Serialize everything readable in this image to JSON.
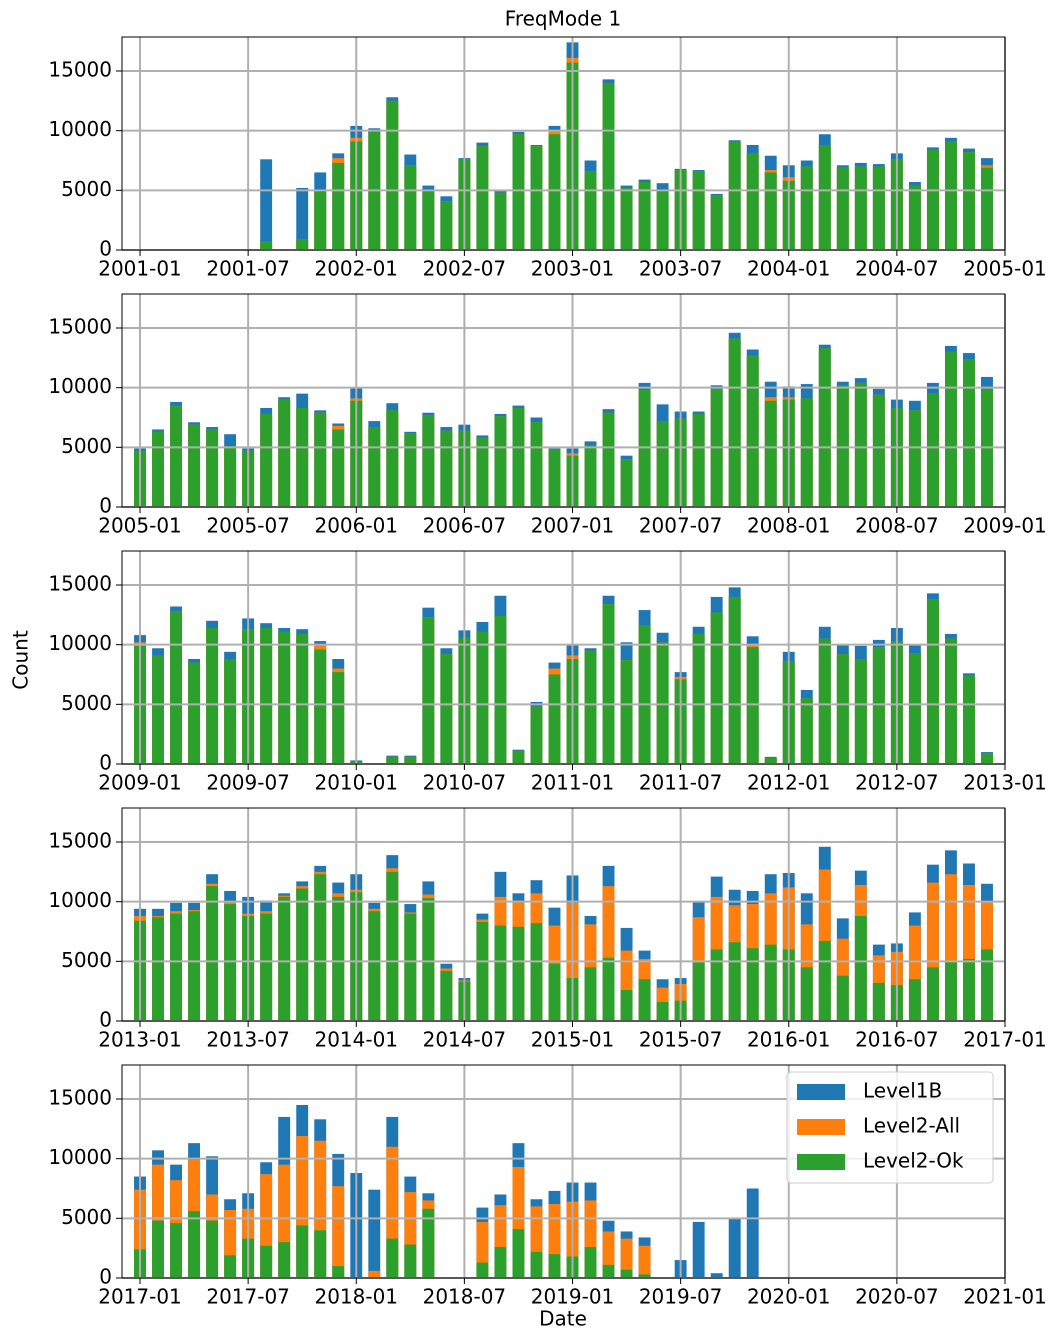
{
  "chart_data": [
    {
      "type": "bar",
      "title": "FreqMode 1",
      "x": [
        "2001-08",
        "2001-10",
        "2001-11",
        "2001-12",
        "2002-01",
        "2002-02",
        "2002-03",
        "2002-04",
        "2002-05",
        "2002-06",
        "2002-07",
        "2002-08",
        "2002-09",
        "2002-10",
        "2002-11",
        "2002-12",
        "2003-01",
        "2003-02",
        "2003-03",
        "2003-04",
        "2003-05",
        "2003-06",
        "2003-07",
        "2003-08",
        "2003-09",
        "2003-10",
        "2003-11",
        "2003-12",
        "2004-01",
        "2004-02",
        "2004-03",
        "2004-04",
        "2004-05",
        "2004-06",
        "2004-07",
        "2004-08",
        "2004-09",
        "2004-10",
        "2004-11",
        "2004-12"
      ],
      "xlim": [
        "2000-12",
        "2005-01"
      ],
      "xticks": [
        "2001-01",
        "2001-07",
        "2002-01",
        "2002-07",
        "2003-01",
        "2003-07",
        "2004-01",
        "2004-07",
        "2005-01"
      ],
      "ylim": [
        0,
        17850
      ],
      "yticks": [
        0,
        5000,
        10000,
        15000
      ],
      "grid": true,
      "series": [
        {
          "color": "#1f77b4",
          "values": [
            7600,
            5200,
            6500,
            8100,
            10400,
            10200,
            12800,
            8000,
            5400,
            4500,
            7700,
            9000,
            5000,
            9900,
            8800,
            10400,
            17400,
            7500,
            14300,
            5400,
            5900,
            5600,
            6800,
            6700,
            4700,
            9200,
            8800,
            7900,
            7100,
            7500,
            9700,
            7100,
            7300,
            7200,
            8100,
            5700,
            8600,
            9400,
            8500,
            7700
          ]
        },
        {
          "color": "#ff7f0e",
          "values": [
            700,
            900,
            5000,
            7700,
            9400,
            10000,
            12500,
            7100,
            4900,
            4100,
            7600,
            8700,
            4800,
            9700,
            8700,
            10000,
            16100,
            6600,
            14000,
            5200,
            5700,
            4900,
            6700,
            6600,
            4600,
            9100,
            8100,
            6700,
            6100,
            7000,
            8800,
            6900,
            7000,
            7000,
            7600,
            5400,
            8400,
            9100,
            8200,
            7100
          ]
        },
        {
          "color": "#2ca02c",
          "values": [
            700,
            900,
            5000,
            7300,
            9100,
            10000,
            12500,
            7100,
            4900,
            4100,
            7600,
            8700,
            4800,
            9700,
            8700,
            9700,
            15700,
            6600,
            14000,
            5200,
            5700,
            4900,
            6700,
            6600,
            4600,
            9100,
            8100,
            6500,
            5800,
            7000,
            8800,
            6900,
            7000,
            7000,
            7600,
            5400,
            8400,
            9100,
            8200,
            6900
          ]
        }
      ]
    },
    {
      "type": "bar",
      "x": [
        "2005-01",
        "2005-02",
        "2005-03",
        "2005-04",
        "2005-05",
        "2005-06",
        "2005-07",
        "2005-08",
        "2005-09",
        "2005-10",
        "2005-11",
        "2005-12",
        "2006-01",
        "2006-02",
        "2006-03",
        "2006-04",
        "2006-05",
        "2006-06",
        "2006-07",
        "2006-08",
        "2006-09",
        "2006-10",
        "2006-11",
        "2006-12",
        "2007-01",
        "2007-02",
        "2007-03",
        "2007-04",
        "2007-05",
        "2007-06",
        "2007-07",
        "2007-08",
        "2007-09",
        "2007-10",
        "2007-11",
        "2007-12",
        "2008-01",
        "2008-02",
        "2008-03",
        "2008-04",
        "2008-05",
        "2008-06",
        "2008-07",
        "2008-08",
        "2008-09",
        "2008-10",
        "2008-11",
        "2008-12"
      ],
      "xlim": [
        "2004-12",
        "2009-01"
      ],
      "xticks": [
        "2005-01",
        "2005-07",
        "2006-01",
        "2006-07",
        "2007-01",
        "2007-07",
        "2008-01",
        "2008-07",
        "2009-01"
      ],
      "ylim": [
        0,
        17850
      ],
      "yticks": [
        0,
        5000,
        10000,
        15000
      ],
      "grid": true,
      "series": [
        {
          "color": "#1f77b4",
          "values": [
            4900,
            6500,
            8800,
            7100,
            6700,
            6100,
            4900,
            8300,
            9200,
            9500,
            8100,
            7000,
            10000,
            7200,
            8700,
            6300,
            7900,
            6700,
            6900,
            6000,
            7800,
            8500,
            7500,
            4900,
            4900,
            5500,
            8200,
            4300,
            10400,
            8600,
            8000,
            8000,
            10200,
            14600,
            13200,
            10500,
            10100,
            10300,
            13600,
            10500,
            10800,
            9900,
            9000,
            8900,
            10400,
            13500,
            12900,
            10900
          ]
        },
        {
          "color": "#ff7f0e",
          "values": [
            4700,
            6300,
            8500,
            6900,
            6500,
            5100,
            4700,
            7800,
            9000,
            8300,
            7900,
            6800,
            9100,
            6700,
            8100,
            6200,
            7700,
            6400,
            6400,
            5800,
            7600,
            8300,
            7100,
            4800,
            4500,
            5200,
            7900,
            4000,
            9800,
            7200,
            7400,
            7800,
            9900,
            14100,
            12700,
            9200,
            9200,
            9100,
            13300,
            10200,
            10400,
            9400,
            8300,
            8100,
            9500,
            13000,
            12400,
            9900
          ]
        },
        {
          "color": "#2ca02c",
          "values": [
            4700,
            6300,
            8500,
            6900,
            6500,
            5100,
            4700,
            7800,
            9000,
            8300,
            7900,
            6500,
            8900,
            6700,
            8100,
            6200,
            7700,
            6400,
            6400,
            5800,
            7600,
            8300,
            7100,
            4800,
            4300,
            5200,
            7900,
            4000,
            9800,
            7200,
            7400,
            7800,
            9900,
            14100,
            12700,
            8900,
            9000,
            9100,
            13300,
            10200,
            10400,
            9400,
            8300,
            8100,
            9500,
            13000,
            12400,
            9900
          ]
        }
      ]
    },
    {
      "type": "bar",
      "ylabel": "Count",
      "x": [
        "2009-01",
        "2009-02",
        "2009-03",
        "2009-04",
        "2009-05",
        "2009-06",
        "2009-07",
        "2009-08",
        "2009-09",
        "2009-10",
        "2009-11",
        "2009-12",
        "2010-01",
        "2010-03",
        "2010-04",
        "2010-05",
        "2010-06",
        "2010-07",
        "2010-08",
        "2010-09",
        "2010-10",
        "2010-11",
        "2010-12",
        "2011-01",
        "2011-02",
        "2011-03",
        "2011-04",
        "2011-05",
        "2011-06",
        "2011-07",
        "2011-08",
        "2011-09",
        "2011-10",
        "2011-11",
        "2011-12",
        "2012-01",
        "2012-02",
        "2012-03",
        "2012-04",
        "2012-05",
        "2012-06",
        "2012-07",
        "2012-08",
        "2012-09",
        "2012-10",
        "2012-11",
        "2012-12"
      ],
      "xlim": [
        "2008-12",
        "2013-01"
      ],
      "xticks": [
        "2009-01",
        "2009-07",
        "2010-01",
        "2010-07",
        "2011-01",
        "2011-07",
        "2012-01",
        "2012-07",
        "2013-01"
      ],
      "ylim": [
        0,
        17850
      ],
      "yticks": [
        0,
        5000,
        10000,
        15000
      ],
      "grid": true,
      "series": [
        {
          "color": "#1f77b4",
          "values": [
            10800,
            9700,
            13200,
            8800,
            12000,
            9400,
            12200,
            11800,
            11400,
            11300,
            10300,
            8800,
            300,
            700,
            700,
            13100,
            9700,
            11200,
            11900,
            14100,
            1200,
            5200,
            8500,
            10000,
            9700,
            14100,
            10200,
            12900,
            11000,
            7700,
            11500,
            14000,
            14800,
            10700,
            600,
            9400,
            6200,
            11500,
            10000,
            9900,
            10400,
            11400,
            10000,
            14300,
            10900,
            7600,
            1000
          ]
        },
        {
          "color": "#ff7f0e",
          "values": [
            10200,
            9100,
            12800,
            8500,
            11400,
            8800,
            11300,
            11400,
            11100,
            10900,
            10000,
            8000,
            200,
            600,
            600,
            12300,
            9200,
            10600,
            11100,
            12400,
            1100,
            4800,
            8000,
            9100,
            9500,
            13400,
            8700,
            11600,
            10200,
            7300,
            10900,
            12700,
            14000,
            10000,
            500,
            8600,
            5500,
            10500,
            9200,
            8800,
            9800,
            10300,
            9300,
            13800,
            10500,
            7400,
            900
          ]
        },
        {
          "color": "#2ca02c",
          "values": [
            9900,
            9100,
            12800,
            8500,
            11400,
            8800,
            11300,
            11400,
            11100,
            10900,
            9600,
            7700,
            200,
            600,
            600,
            12300,
            9200,
            10600,
            11100,
            12400,
            1100,
            4800,
            7500,
            8800,
            9500,
            13400,
            8700,
            11600,
            10200,
            7100,
            10900,
            12700,
            14000,
            9800,
            500,
            8600,
            5500,
            10500,
            9200,
            8800,
            9800,
            10300,
            9300,
            13800,
            10500,
            7400,
            900
          ]
        }
      ]
    },
    {
      "type": "bar",
      "x": [
        "2013-01",
        "2013-02",
        "2013-03",
        "2013-04",
        "2013-05",
        "2013-06",
        "2013-07",
        "2013-08",
        "2013-09",
        "2013-10",
        "2013-11",
        "2013-12",
        "2014-01",
        "2014-02",
        "2014-03",
        "2014-04",
        "2014-05",
        "2014-06",
        "2014-07",
        "2014-08",
        "2014-09",
        "2014-10",
        "2014-11",
        "2014-12",
        "2015-01",
        "2015-02",
        "2015-03",
        "2015-04",
        "2015-05",
        "2015-06",
        "2015-07",
        "2015-08",
        "2015-09",
        "2015-10",
        "2015-11",
        "2015-12",
        "2016-01",
        "2016-02",
        "2016-03",
        "2016-04",
        "2016-05",
        "2016-06",
        "2016-07",
        "2016-08",
        "2016-09",
        "2016-10",
        "2016-11",
        "2016-12"
      ],
      "xlim": [
        "2012-12",
        "2017-01"
      ],
      "xticks": [
        "2013-01",
        "2013-07",
        "2014-01",
        "2014-07",
        "2015-01",
        "2015-07",
        "2016-01",
        "2016-07",
        "2017-01"
      ],
      "ylim": [
        0,
        17850
      ],
      "yticks": [
        0,
        5000,
        10000,
        15000
      ],
      "grid": true,
      "series": [
        {
          "color": "#1f77b4",
          "values": [
            9400,
            9400,
            9900,
            9900,
            12300,
            10900,
            10400,
            10100,
            10700,
            11700,
            13000,
            11600,
            12300,
            9900,
            13900,
            9800,
            11700,
            4800,
            3600,
            9000,
            12500,
            10700,
            11800,
            9500,
            12200,
            8800,
            13000,
            7800,
            5900,
            3500,
            3600,
            10000,
            12100,
            11000,
            10900,
            12300,
            12400,
            10700,
            14600,
            8600,
            12600,
            6400,
            6500,
            9100,
            13100,
            14300,
            13200,
            11500
          ]
        },
        {
          "color": "#ff7f0e",
          "values": [
            8800,
            8800,
            9200,
            9300,
            11500,
            10000,
            9000,
            9200,
            10500,
            11300,
            12500,
            10700,
            11000,
            9400,
            12800,
            9100,
            10600,
            4400,
            3400,
            8500,
            10400,
            10100,
            10700,
            8000,
            9900,
            8100,
            11300,
            5900,
            5200,
            2800,
            3100,
            8700,
            10400,
            9700,
            9800,
            10700,
            11200,
            8100,
            12700,
            6900,
            11400,
            5500,
            5800,
            8000,
            11600,
            12300,
            11400,
            10000
          ]
        },
        {
          "color": "#2ca02c",
          "values": [
            8400,
            8700,
            9000,
            9200,
            11300,
            9800,
            8800,
            9000,
            10400,
            11100,
            12300,
            10400,
            10800,
            9200,
            12500,
            9000,
            10300,
            4200,
            3300,
            8300,
            8000,
            7900,
            8200,
            4800,
            3600,
            4500,
            5300,
            2600,
            3500,
            1600,
            1700,
            4900,
            6000,
            6600,
            6100,
            6400,
            6000,
            4500,
            6700,
            3800,
            8800,
            3200,
            3000,
            3500,
            4500,
            5000,
            5200,
            6000
          ]
        }
      ]
    },
    {
      "type": "bar",
      "xlabel": "Date",
      "legend": "upper right",
      "x": [
        "2017-01",
        "2017-02",
        "2017-03",
        "2017-04",
        "2017-05",
        "2017-06",
        "2017-07",
        "2017-08",
        "2017-09",
        "2017-10",
        "2017-11",
        "2017-12",
        "2018-01",
        "2018-02",
        "2018-03",
        "2018-04",
        "2018-05",
        "2018-08",
        "2018-09",
        "2018-10",
        "2018-11",
        "2018-12",
        "2019-01",
        "2019-02",
        "2019-03",
        "2019-04",
        "2019-05",
        "2019-07",
        "2019-08",
        "2019-09",
        "2019-10",
        "2019-11"
      ],
      "xlim": [
        "2016-12",
        "2021-01"
      ],
      "xticks": [
        "2017-01",
        "2017-07",
        "2018-01",
        "2018-07",
        "2019-01",
        "2019-07",
        "2020-01",
        "2020-07",
        "2021-01"
      ],
      "ylim": [
        0,
        17850
      ],
      "yticks": [
        0,
        5000,
        10000,
        15000
      ],
      "grid": true,
      "series": [
        {
          "name": "Level1B",
          "color": "#1f77b4",
          "values": [
            8500,
            10700,
            9500,
            11300,
            10200,
            6600,
            7100,
            9700,
            13500,
            14500,
            13300,
            10400,
            8800,
            7400,
            13500,
            8500,
            7100,
            5900,
            7000,
            11300,
            6600,
            7300,
            8000,
            8000,
            4800,
            3900,
            3400,
            1500,
            4700,
            400,
            5000,
            7500
          ]
        },
        {
          "name": "Level2-All",
          "color": "#ff7f0e",
          "values": [
            7400,
            9500,
            8200,
            9900,
            7000,
            5700,
            5800,
            8700,
            9500,
            11900,
            11500,
            7700,
            null,
            600,
            11000,
            7200,
            6500,
            4700,
            6100,
            9300,
            6000,
            6200,
            6400,
            6500,
            3900,
            3300,
            2700,
            null,
            null,
            null,
            null,
            null
          ]
        },
        {
          "name": "Level2-Ok",
          "color": "#2ca02c",
          "values": [
            2400,
            4800,
            4600,
            5600,
            4800,
            1900,
            3300,
            2700,
            3000,
            4400,
            4000,
            1000,
            null,
            null,
            3300,
            2800,
            5800,
            1300,
            2600,
            4100,
            2200,
            2000,
            1800,
            2600,
            1100,
            700,
            300,
            null,
            null,
            null,
            null,
            null
          ]
        }
      ]
    }
  ]
}
